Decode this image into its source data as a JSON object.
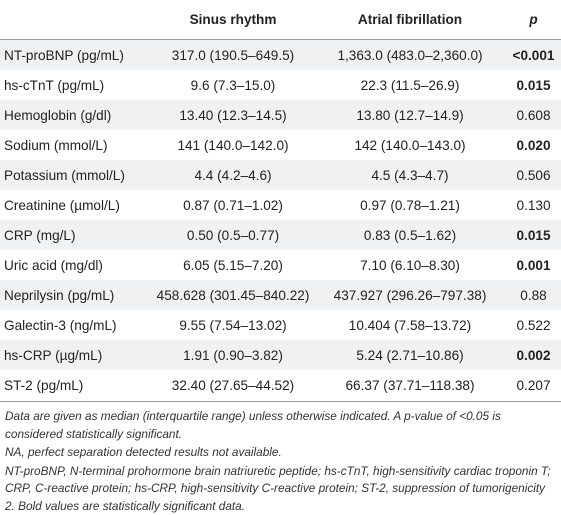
{
  "table": {
    "columns": [
      "",
      "Sinus rhythm",
      "Atrial fibrillation",
      "p"
    ],
    "rows": [
      {
        "label": "NT-proBNP (pg/mL)",
        "sinus": "317.0 (190.5–649.5)",
        "af": "1,363.0 (483.0–2,360.0)",
        "p": "<0.001",
        "bold": true
      },
      {
        "label": "hs-cTnT (pg/mL)",
        "sinus": "9.6 (7.3–15.0)",
        "af": "22.3 (11.5–26.9)",
        "p": "0.015",
        "bold": true
      },
      {
        "label": "Hemoglobin (g/dl)",
        "sinus": "13.40 (12.3–14.5)",
        "af": "13.80 (12.7–14.9)",
        "p": "0.608",
        "bold": false
      },
      {
        "label": "Sodium (mmol/L)",
        "sinus": "141 (140.0–142.0)",
        "af": "142 (140.0–143.0)",
        "p": "0.020",
        "bold": true
      },
      {
        "label": "Potassium (mmol/L)",
        "sinus": "4.4 (4.2–4.6)",
        "af": "4.5 (4.3–4.7)",
        "p": "0.506",
        "bold": false
      },
      {
        "label": "Creatinine (µmol/L)",
        "sinus": "0.87 (0.71–1.02)",
        "af": "0.97 (0.78–1.21)",
        "p": "0.130",
        "bold": false
      },
      {
        "label": "CRP (mg/L)",
        "sinus": "0.50 (0.5–0.77)",
        "af": "0.83 (0.5–1.62)",
        "p": "0.015",
        "bold": true
      },
      {
        "label": "Uric acid (mg/dl)",
        "sinus": "6.05 (5.15–7.20)",
        "af": "7.10 (6.10–8.30)",
        "p": "0.001",
        "bold": true
      },
      {
        "label": "Neprilysin (pg/mL)",
        "sinus": "458.628 (301.45–840.22)",
        "af": "437.927 (296.26–797.38)",
        "p": "0.88",
        "bold": false
      },
      {
        "label": "Galectin-3 (ng/mL)",
        "sinus": "9.55 (7.54–13.02)",
        "af": "10.404 (7.58–13.72)",
        "p": "0.522",
        "bold": false
      },
      {
        "label": "hs-CRP (µg/mL)",
        "sinus": "1.91 (0.90–3.82)",
        "af": "5.24 (2.71–10.86)",
        "p": "0.002",
        "bold": true
      },
      {
        "label": "ST-2 (pg/mL)",
        "sinus": "32.40 (27.65–44.52)",
        "af": "66.37 (37.71–118.38)",
        "p": "0.207",
        "bold": false
      }
    ],
    "notes": [
      "Data are given as median (interquartile range) unless otherwise indicated. A p-value of <0.05 is considered statistically significant.",
      "NA, perfect separation detected results not available.",
      "NT-proBNP, N-terminal prohormone brain natriuretic peptide; hs-cTnT, high-sensitivity cardiac troponin T; CRP, C-reactive protein; hs-CRP, high-sensitivity C-reactive protein; ST-2, suppression of tumorigenicity 2. Bold values are statistically significant data."
    ]
  }
}
